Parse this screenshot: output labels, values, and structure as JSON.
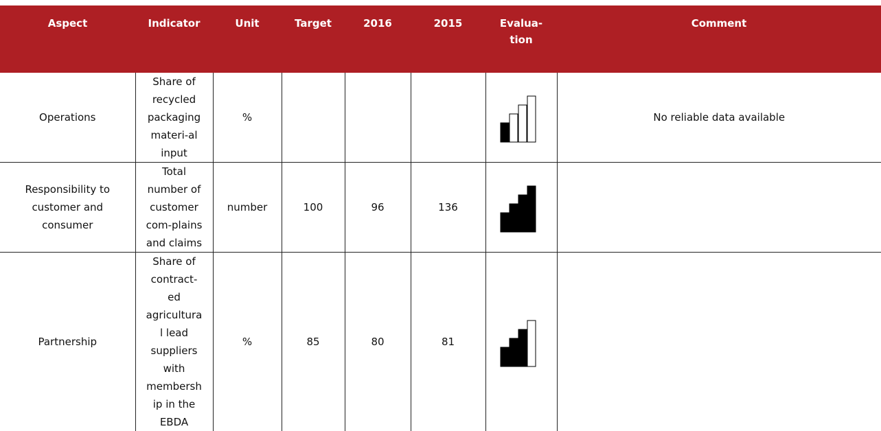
{
  "table": {
    "header": [
      "Aspect",
      "Indicator",
      "Unit",
      "Target",
      "2016",
      "2015",
      "Evalua-tion",
      "Comment"
    ],
    "rows": [
      {
        "aspect": "Operations",
        "indicator": "Share of recycled packaging materi-al input",
        "unit": "%",
        "target": null,
        "y2016": null,
        "y2015": null,
        "evaluation": 1,
        "comment": "No reliable data available"
      },
      {
        "aspect": "Responsibility to customer and consumer",
        "indicator": "Total number of customer com-plains and claims",
        "unit": "number",
        "target": 100,
        "y2016": 96,
        "y2015": 136,
        "evaluation": 4,
        "comment": null
      },
      {
        "aspect": "Partnership",
        "indicator": "Share of contract-ed agricultural lead suppliers with membership in the EBDA",
        "unit": "%",
        "target": 85,
        "y2016": 80,
        "y2015": 81,
        "evaluation": 3,
        "comment": null
      }
    ]
  }
}
